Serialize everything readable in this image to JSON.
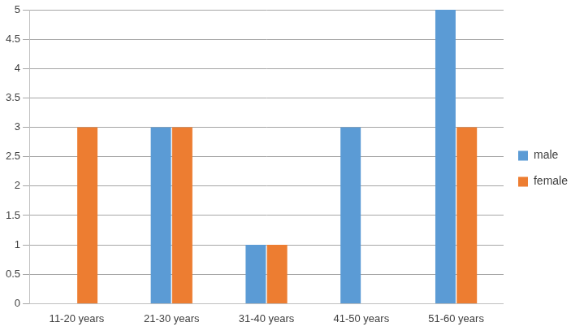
{
  "chart_data": {
    "type": "bar",
    "categories": [
      "11-20 years",
      "21-30 years",
      "31-40 years",
      "41-50 years",
      "51-60 years"
    ],
    "series": [
      {
        "name": "male",
        "color": "#5b9bd5",
        "values": [
          0,
          3,
          1,
          3,
          5
        ]
      },
      {
        "name": "female",
        "color": "#ed7d31",
        "values": [
          3,
          3,
          1,
          0,
          3
        ]
      }
    ],
    "ylim": [
      0,
      5
    ],
    "yticks": [
      0,
      0.5,
      1,
      1.5,
      2,
      2.5,
      3,
      3.5,
      4,
      4.5,
      5
    ],
    "grid": true,
    "legend": "right"
  }
}
